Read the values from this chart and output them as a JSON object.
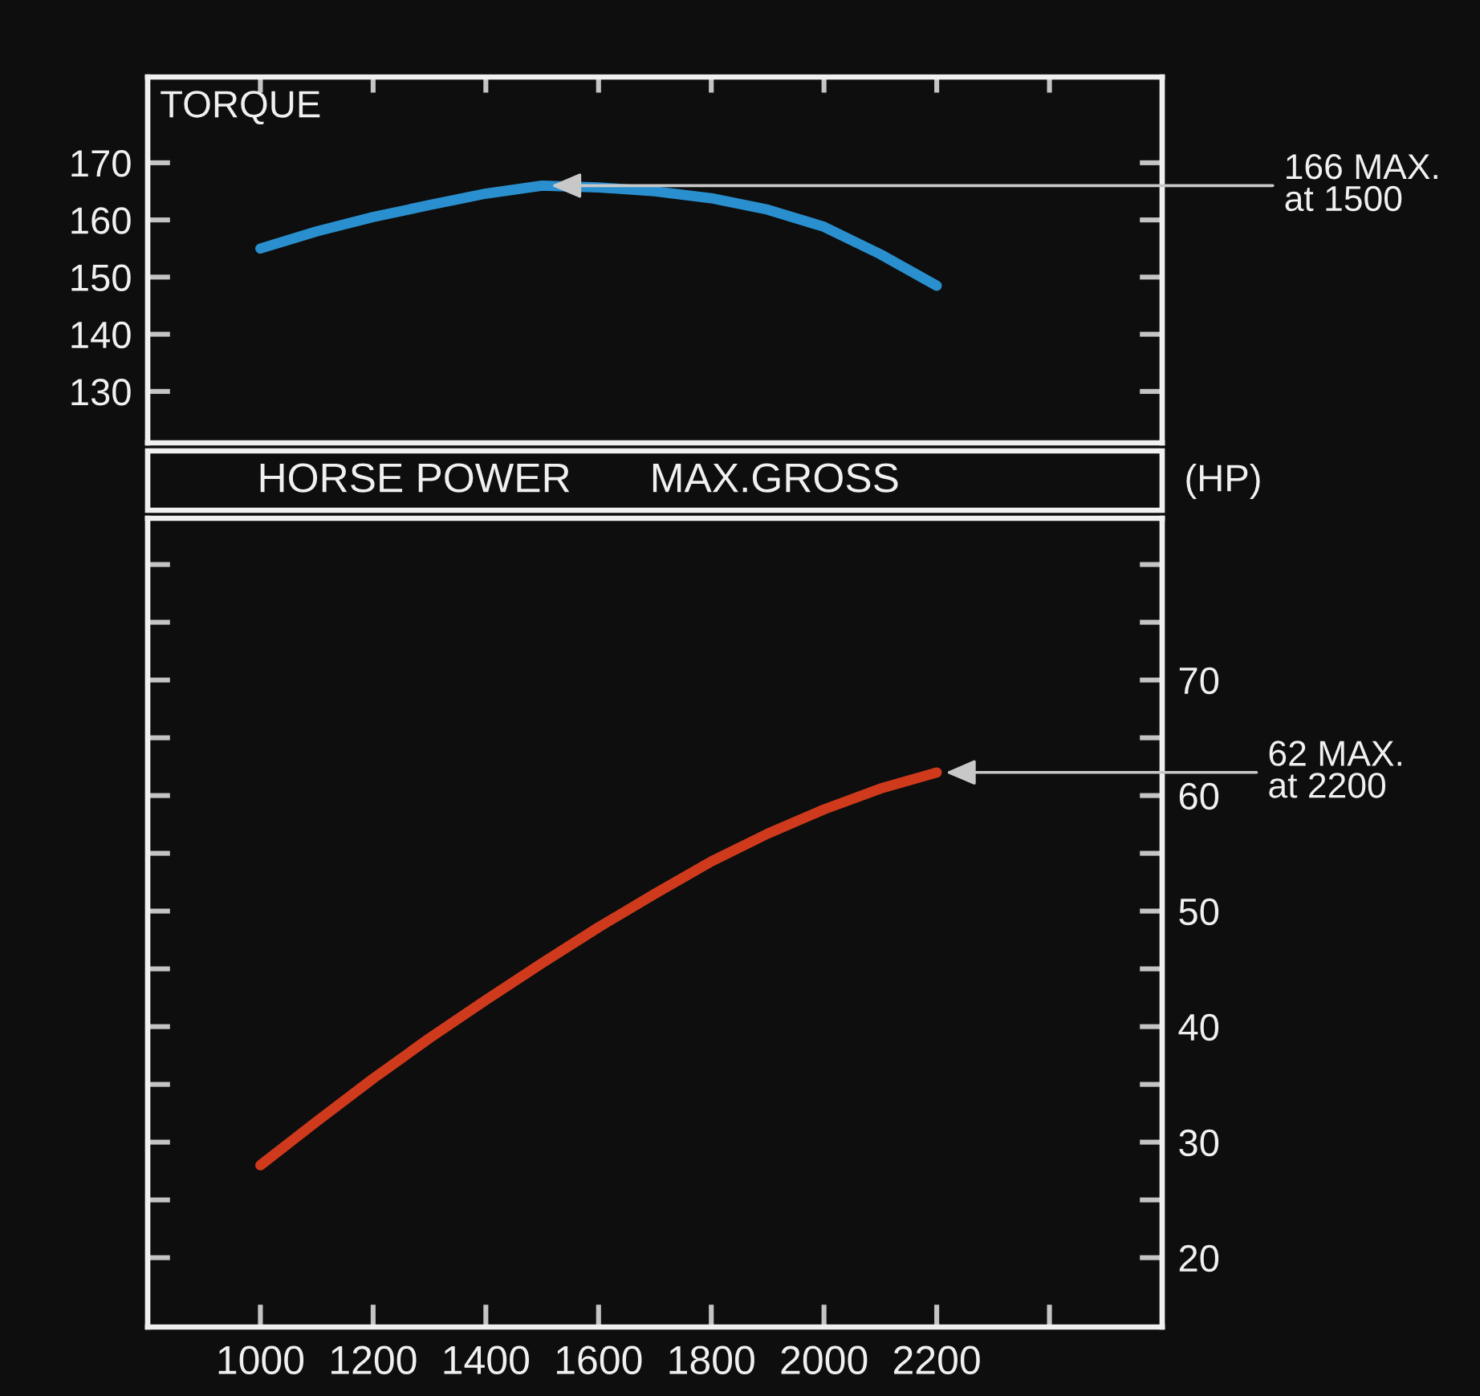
{
  "chart_data": [
    {
      "type": "line",
      "title": "TORQUE",
      "x": [
        1000,
        1100,
        1200,
        1300,
        1400,
        1500,
        1600,
        1700,
        1800,
        1900,
        2000,
        2100,
        2200
      ],
      "series": [
        {
          "color": "#2a8fcf",
          "values": [
            155,
            158,
            160.5,
            162.6,
            164.6,
            166,
            165.7,
            165,
            163.8,
            161.8,
            158.8,
            154,
            148.5
          ]
        }
      ],
      "xlim": [
        800,
        2600
      ],
      "xticks": [
        1000,
        1200,
        1400,
        1600,
        1800,
        2000,
        2200,
        {
          "value": 2400,
          "label": null
        }
      ],
      "ylim": [
        121,
        185
      ],
      "yticks": [
        130,
        140,
        150,
        160,
        170
      ],
      "tick_labels": "y",
      "annotations": [
        {
          "text": "166 MAX.\nat 1500",
          "x": 1500,
          "y": 166
        }
      ]
    },
    {
      "type": "line",
      "title": "HORSE POWER",
      "subtitle": "MAX.GROSS",
      "ylabel": "(HP)",
      "x": [
        1000,
        1100,
        1200,
        1300,
        1400,
        1500,
        1600,
        1700,
        1800,
        1900,
        2000,
        2100,
        2200
      ],
      "series": [
        {
          "color": "#d03a1c",
          "values": [
            28,
            31.8,
            35.5,
            39,
            42.3,
            45.5,
            48.6,
            51.5,
            54.3,
            56.7,
            58.8,
            60.6,
            62
          ]
        }
      ],
      "xlim": [
        800,
        2600
      ],
      "xticks": [
        1000,
        1200,
        1400,
        1600,
        1800,
        2000,
        2200,
        {
          "value": 2400,
          "label": null
        }
      ],
      "ylim": [
        14,
        84
      ],
      "yticks": [
        20,
        {
          "value": 25,
          "label": null
        },
        30,
        {
          "value": 35,
          "label": null
        },
        40,
        {
          "value": 45,
          "label": null
        },
        50,
        {
          "value": 55,
          "label": null
        },
        60,
        {
          "value": 65,
          "label": null
        },
        70,
        {
          "value": 75,
          "label": null
        },
        {
          "value": 80,
          "label": null
        }
      ],
      "annotations": [
        {
          "text": "62 MAX.\nat 2200",
          "x": 2200,
          "y": 62
        }
      ]
    }
  ]
}
